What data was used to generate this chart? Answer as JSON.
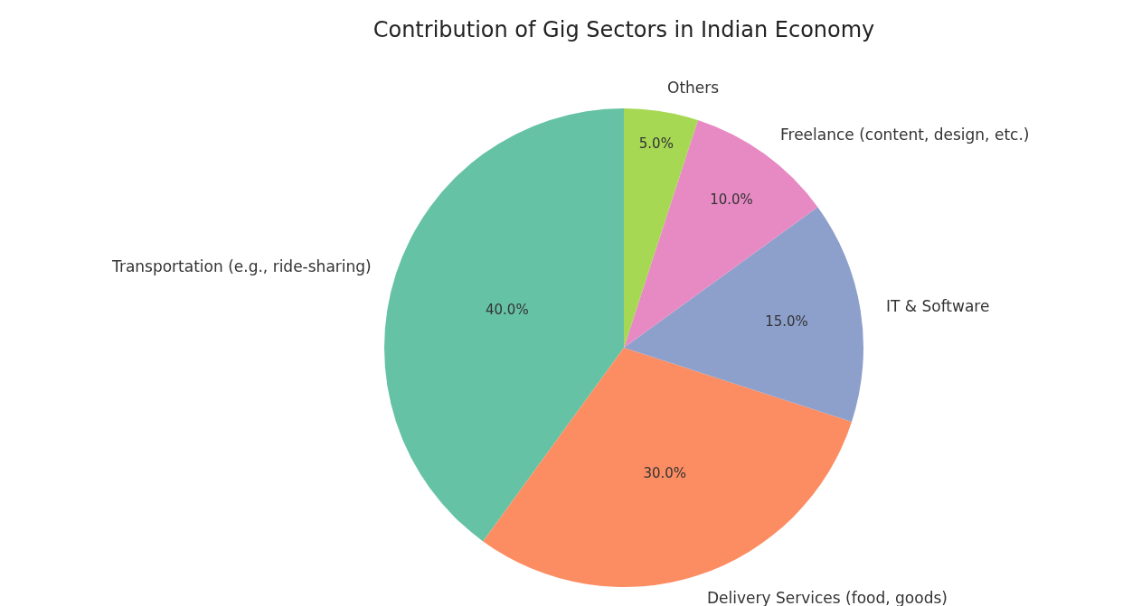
{
  "chart_data": {
    "type": "pie",
    "title": "Contribution of Gig Sectors in Indian Economy",
    "categories": [
      "Transportation (e.g., ride-sharing)",
      "Delivery Services (food, goods)",
      "IT & Software",
      "Freelance (content, design, etc.)",
      "Others"
    ],
    "values": [
      40,
      30,
      15,
      10,
      5
    ],
    "value_labels": [
      "40.0%",
      "30.0%",
      "15.0%",
      "10.0%",
      "5.0%"
    ],
    "colors": [
      "#66c2a5",
      "#fc8d62",
      "#8da0cb",
      "#e78ac3",
      "#a6d854"
    ],
    "legend": false
  }
}
